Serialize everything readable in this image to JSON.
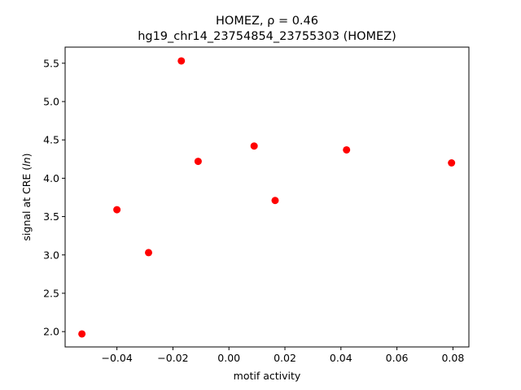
{
  "chart_data": {
    "type": "scatter",
    "title_line1": "HOMEZ, ρ = 0.46",
    "title_line2": "hg19_chr14_23754854_23755303 (HOMEZ)",
    "xlabel": "motif activity",
    "ylabel_prefix": "signal at CRE (",
    "ylabel_italic": "ln",
    "ylabel_suffix": ")",
    "xlim": [
      -0.0585,
      0.0857
    ],
    "ylim": [
      1.8,
      5.71
    ],
    "xticks": [
      -0.04,
      -0.02,
      0.0,
      0.02,
      0.04,
      0.06,
      0.08
    ],
    "xtick_labels": [
      "−0.04",
      "−0.02",
      "0.00",
      "0.02",
      "0.04",
      "0.06",
      "0.08"
    ],
    "yticks": [
      2.0,
      2.5,
      3.0,
      3.5,
      4.0,
      4.5,
      5.0,
      5.5
    ],
    "ytick_labels": [
      "2.0",
      "2.5",
      "3.0",
      "3.5",
      "4.0",
      "4.5",
      "5.0",
      "5.5"
    ],
    "grid": false,
    "marker_color": "#ff0000",
    "points": [
      {
        "x": -0.0525,
        "y": 1.97
      },
      {
        "x": -0.04,
        "y": 3.59
      },
      {
        "x": -0.0287,
        "y": 3.03
      },
      {
        "x": -0.017,
        "y": 5.53
      },
      {
        "x": -0.011,
        "y": 4.22
      },
      {
        "x": 0.009,
        "y": 4.42
      },
      {
        "x": 0.0165,
        "y": 3.71
      },
      {
        "x": 0.042,
        "y": 4.37
      },
      {
        "x": 0.0795,
        "y": 4.2
      }
    ]
  }
}
